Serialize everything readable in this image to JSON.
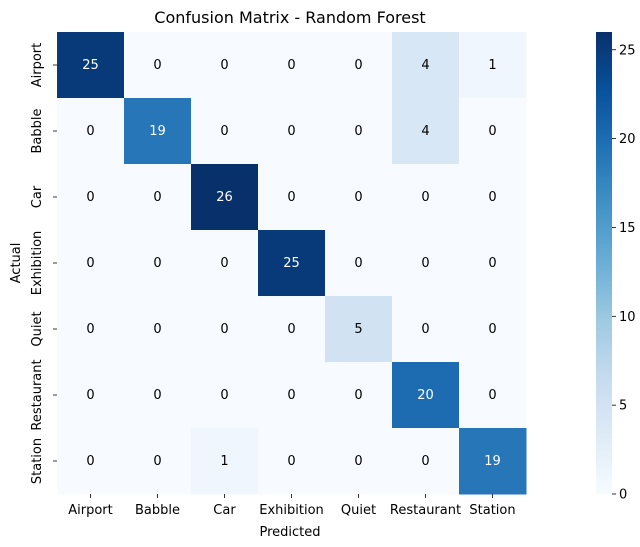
{
  "chart_data": {
    "type": "heatmap",
    "title": "Confusion Matrix - Random Forest",
    "xlabel": "Predicted",
    "ylabel": "Actual",
    "x_categories": [
      "Airport",
      "Babble",
      "Car",
      "Exhibition",
      "Quiet",
      "Restaurant",
      "Station"
    ],
    "y_categories": [
      "Airport",
      "Babble",
      "Car",
      "Exhibition",
      "Quiet",
      "Restaurant",
      "Station"
    ],
    "values": [
      [
        25,
        0,
        0,
        0,
        0,
        4,
        1
      ],
      [
        0,
        19,
        0,
        0,
        0,
        4,
        0
      ],
      [
        0,
        0,
        26,
        0,
        0,
        0,
        0
      ],
      [
        0,
        0,
        0,
        25,
        0,
        0,
        0
      ],
      [
        0,
        0,
        0,
        0,
        5,
        0,
        0
      ],
      [
        0,
        0,
        0,
        0,
        0,
        20,
        0
      ],
      [
        0,
        0,
        1,
        0,
        0,
        0,
        19
      ]
    ],
    "colormap": "Blues",
    "value_range": [
      0,
      26
    ],
    "colorbar_ticks": [
      "0",
      "5",
      "10",
      "15",
      "20",
      "25"
    ]
  }
}
